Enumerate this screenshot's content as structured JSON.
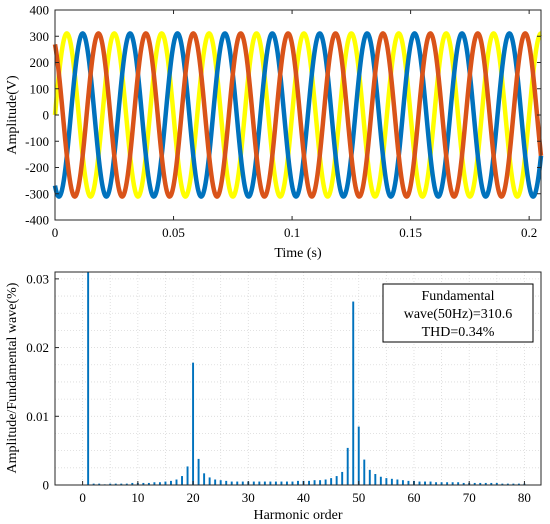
{
  "chart_data": [
    {
      "type": "line",
      "xlabel": "Time (s)",
      "ylabel": "Amplitude(V)",
      "xlim": [
        0,
        0.205
      ],
      "ylim": [
        -400,
        400
      ],
      "xticks": [
        0,
        0.05,
        0.1,
        0.15,
        0.2
      ],
      "xtick_labels": [
        "0",
        "0.05",
        "0.1",
        "0.15",
        "0.2"
      ],
      "yticks": [
        -400,
        -300,
        -200,
        -100,
        0,
        100,
        200,
        300,
        400
      ],
      "ytick_labels": [
        "-400",
        "-300",
        "-200",
        "-100",
        "0",
        "100",
        "200",
        "300",
        "400"
      ],
      "grid": false,
      "series": [
        {
          "amplitude": 310.6,
          "frequency_hz": 50,
          "phase_deg": 0,
          "color": "#ffff00"
        },
        {
          "amplitude": 310.6,
          "frequency_hz": 50,
          "phase_deg": -120,
          "color": "#0072bd"
        },
        {
          "amplitude": 310.6,
          "frequency_hz": 50,
          "phase_deg": 120,
          "color": "#d95319"
        }
      ]
    },
    {
      "type": "bar",
      "xlabel": "Harmonic order",
      "ylabel": "Amplitude/Fundamental wave(%)",
      "xlim": [
        -5,
        83
      ],
      "ylim": [
        0,
        0.031
      ],
      "xticks": [
        0,
        10,
        20,
        30,
        40,
        50,
        60,
        70,
        80
      ],
      "xtick_labels": [
        "0",
        "10",
        "20",
        "30",
        "40",
        "50",
        "60",
        "70",
        "80"
      ],
      "yticks": [
        0,
        0.01,
        0.02,
        0.03
      ],
      "ytick_labels": [
        "0",
        "0.01",
        "0.02",
        "0.03"
      ],
      "grid": true,
      "color": "#0072bd",
      "x": [
        1,
        2,
        3,
        4,
        5,
        6,
        7,
        8,
        9,
        10,
        11,
        12,
        13,
        14,
        15,
        16,
        17,
        18,
        19,
        20,
        21,
        22,
        23,
        24,
        25,
        26,
        27,
        28,
        29,
        30,
        31,
        32,
        33,
        34,
        35,
        36,
        37,
        38,
        39,
        40,
        41,
        42,
        43,
        44,
        45,
        46,
        47,
        48,
        49,
        50,
        51,
        52,
        53,
        54,
        55,
        56,
        57,
        58,
        59,
        60,
        61,
        62,
        63,
        64,
        65,
        66,
        67,
        68,
        69,
        70,
        71,
        72,
        73,
        74,
        75,
        76,
        77,
        78,
        79,
        80
      ],
      "values": [
        0.035,
        0.0002,
        0.0002,
        0.0001,
        0.0002,
        0.0002,
        0.0002,
        0.0002,
        0.0003,
        0.0003,
        0.0003,
        0.0003,
        0.0004,
        0.0004,
        0.0005,
        0.0006,
        0.0008,
        0.0013,
        0.0027,
        0.0178,
        0.0038,
        0.0017,
        0.0011,
        0.0008,
        0.0007,
        0.0006,
        0.0005,
        0.0005,
        0.0005,
        0.0005,
        0.0005,
        0.0005,
        0.0005,
        0.0005,
        0.0005,
        0.0005,
        0.0005,
        0.0005,
        0.0006,
        0.0006,
        0.0006,
        0.0007,
        0.0007,
        0.0008,
        0.001,
        0.0013,
        0.0019,
        0.0054,
        0.0267,
        0.0085,
        0.0037,
        0.0022,
        0.0016,
        0.0012,
        0.001,
        0.0009,
        0.0008,
        0.0007,
        0.0006,
        0.0006,
        0.0005,
        0.0005,
        0.0005,
        0.0004,
        0.0004,
        0.0004,
        0.0004,
        0.0004,
        0.0003,
        0.0003,
        0.0003,
        0.0003,
        0.0003,
        0.0003,
        0.0003,
        0.0002,
        0.0002,
        0.0002,
        0.0002,
        0.0002
      ],
      "annotation": {
        "line1": "Fundamental",
        "line2": "wave(50Hz)=310.6",
        "line3": "THD=0.34%"
      }
    }
  ]
}
